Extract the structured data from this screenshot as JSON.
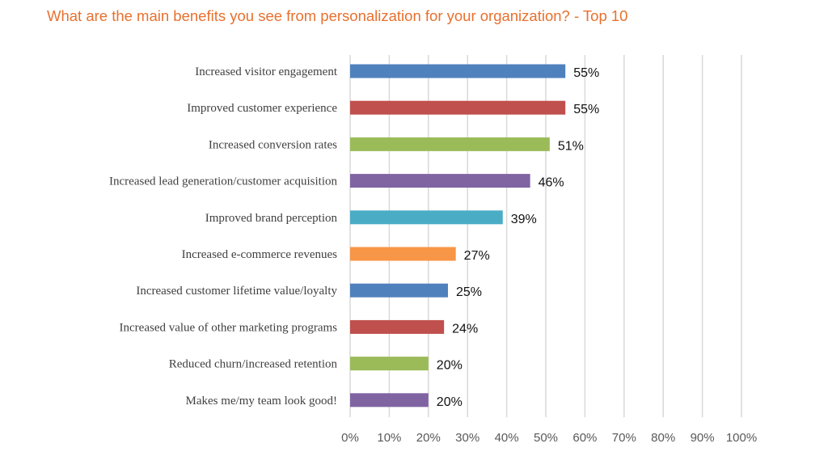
{
  "chart_data": {
    "type": "bar",
    "orientation": "horizontal",
    "title": "What are the main benefits you see from personalization for your organization? - Top 10",
    "categories": [
      "Increased visitor engagement",
      "Improved customer experience",
      "Increased conversion rates",
      "Increased lead generation/customer acquisition",
      "Improved brand perception",
      "Increased e-commerce revenues",
      "Increased customer lifetime value/loyalty",
      "Increased value of other marketing programs",
      "Reduced churn/increased retention",
      "Makes me/my team look good!"
    ],
    "values": [
      55,
      55,
      51,
      46,
      39,
      27,
      25,
      24,
      20,
      20
    ],
    "data_labels": [
      "55%",
      "55%",
      "51%",
      "46%",
      "39%",
      "27%",
      "25%",
      "24%",
      "20%",
      "20%"
    ],
    "colors": [
      "#4F81BD",
      "#C0504D",
      "#9BBB59",
      "#8064A2",
      "#4BACC6",
      "#F79646",
      "#4F81BD",
      "#C0504D",
      "#9BBB59",
      "#8064A2"
    ],
    "xlim": [
      0,
      100
    ],
    "xticks": [
      "0%",
      "10%",
      "20%",
      "30%",
      "40%",
      "50%",
      "60%",
      "70%",
      "80%",
      "90%",
      "100%"
    ],
    "grid": "vertical",
    "xlabel": "",
    "ylabel": ""
  }
}
